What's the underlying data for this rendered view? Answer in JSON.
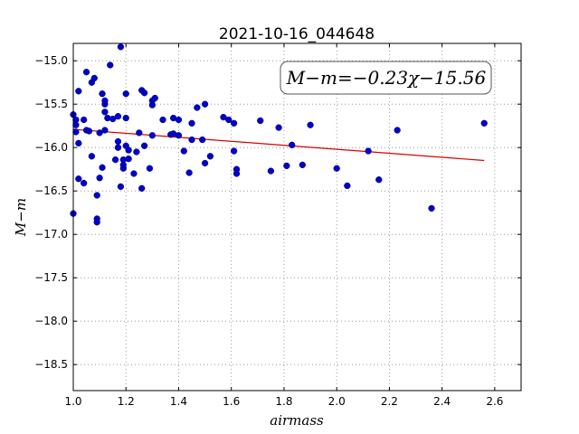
{
  "chart_data": {
    "type": "scatter",
    "title": "2021-10-16_044648",
    "xlabel": "airmass",
    "ylabel": "M−m",
    "xlim": [
      1.0,
      2.7
    ],
    "ylim": [
      -18.8,
      -14.8
    ],
    "ylim_inverted": true,
    "xticks": [
      "1.0",
      "1.2",
      "1.4",
      "1.6",
      "1.8",
      "2.0",
      "2.2",
      "2.4",
      "2.6"
    ],
    "yticks": [
      "−15.0",
      "−15.5",
      "−16.0",
      "−16.5",
      "−17.0",
      "−17.5",
      "−18.0",
      "−18.5"
    ],
    "grid": true,
    "annotation": "M−m=−0.23χ−15.56",
    "colors": {
      "points": "#0000cc",
      "fit_line": "#dd0000",
      "grid": "#888888"
    },
    "fit_line": {
      "slope": -0.23,
      "intercept": -15.56,
      "x": [
        1.0,
        2.56
      ]
    },
    "points": [
      [
        1.0,
        -15.62
      ],
      [
        1.01,
        -15.68
      ],
      [
        1.01,
        -15.74
      ],
      [
        1.01,
        -15.82
      ],
      [
        1.0,
        -16.76
      ],
      [
        1.02,
        -15.35
      ],
      [
        1.02,
        -15.95
      ],
      [
        1.02,
        -16.36
      ],
      [
        1.04,
        -16.41
      ],
      [
        1.04,
        -15.68
      ],
      [
        1.05,
        -15.13
      ],
      [
        1.05,
        -15.8
      ],
      [
        1.06,
        -15.81
      ],
      [
        1.07,
        -16.1
      ],
      [
        1.07,
        -15.25
      ],
      [
        1.08,
        -15.2
      ],
      [
        1.09,
        -16.55
      ],
      [
        1.09,
        -16.82
      ],
      [
        1.09,
        -16.86
      ],
      [
        1.1,
        -15.83
      ],
      [
        1.1,
        -16.35
      ],
      [
        1.11,
        -15.38
      ],
      [
        1.11,
        -16.23
      ],
      [
        1.12,
        -15.5
      ],
      [
        1.12,
        -15.46
      ],
      [
        1.12,
        -15.59
      ],
      [
        1.12,
        -15.8
      ],
      [
        1.13,
        -15.66
      ],
      [
        1.14,
        -15.05
      ],
      [
        1.15,
        -15.67
      ],
      [
        1.16,
        -16.14
      ],
      [
        1.17,
        -16.0
      ],
      [
        1.17,
        -15.93
      ],
      [
        1.17,
        -15.64
      ],
      [
        1.18,
        -16.45
      ],
      [
        1.18,
        -14.84
      ],
      [
        1.19,
        -16.24
      ],
      [
        1.19,
        -16.2
      ],
      [
        1.19,
        -16.14
      ],
      [
        1.2,
        -15.66
      ],
      [
        1.2,
        -15.38
      ],
      [
        1.2,
        -15.98
      ],
      [
        1.21,
        -16.13
      ],
      [
        1.21,
        -16.03
      ],
      [
        1.23,
        -16.3
      ],
      [
        1.24,
        -16.05
      ],
      [
        1.25,
        -15.83
      ],
      [
        1.26,
        -16.47
      ],
      [
        1.26,
        -15.34
      ],
      [
        1.27,
        -15.37
      ],
      [
        1.27,
        -15.98
      ],
      [
        1.29,
        -16.24
      ],
      [
        1.3,
        -15.51
      ],
      [
        1.3,
        -15.46
      ],
      [
        1.3,
        -15.86
      ],
      [
        1.31,
        -15.43
      ],
      [
        1.34,
        -15.68
      ],
      [
        1.37,
        -15.85
      ],
      [
        1.38,
        -15.84
      ],
      [
        1.38,
        -15.66
      ],
      [
        1.4,
        -15.68
      ],
      [
        1.4,
        -15.86
      ],
      [
        1.42,
        -16.04
      ],
      [
        1.44,
        -16.29
      ],
      [
        1.45,
        -15.91
      ],
      [
        1.45,
        -15.72
      ],
      [
        1.47,
        -15.54
      ],
      [
        1.49,
        -15.91
      ],
      [
        1.5,
        -15.5
      ],
      [
        1.5,
        -16.18
      ],
      [
        1.52,
        -16.1
      ],
      [
        1.57,
        -15.65
      ],
      [
        1.59,
        -15.68
      ],
      [
        1.61,
        -16.04
      ],
      [
        1.61,
        -15.72
      ],
      [
        1.62,
        -16.25
      ],
      [
        1.62,
        -16.3
      ],
      [
        1.71,
        -15.69
      ],
      [
        1.75,
        -16.27
      ],
      [
        1.78,
        -15.77
      ],
      [
        1.81,
        -16.21
      ],
      [
        1.83,
        -15.97
      ],
      [
        1.87,
        -16.2
      ],
      [
        1.9,
        -15.74
      ],
      [
        2.0,
        -16.24
      ],
      [
        2.04,
        -16.44
      ],
      [
        2.12,
        -16.04
      ],
      [
        2.16,
        -16.37
      ],
      [
        2.23,
        -15.8
      ],
      [
        2.36,
        -16.7
      ],
      [
        2.56,
        -15.72
      ]
    ]
  }
}
